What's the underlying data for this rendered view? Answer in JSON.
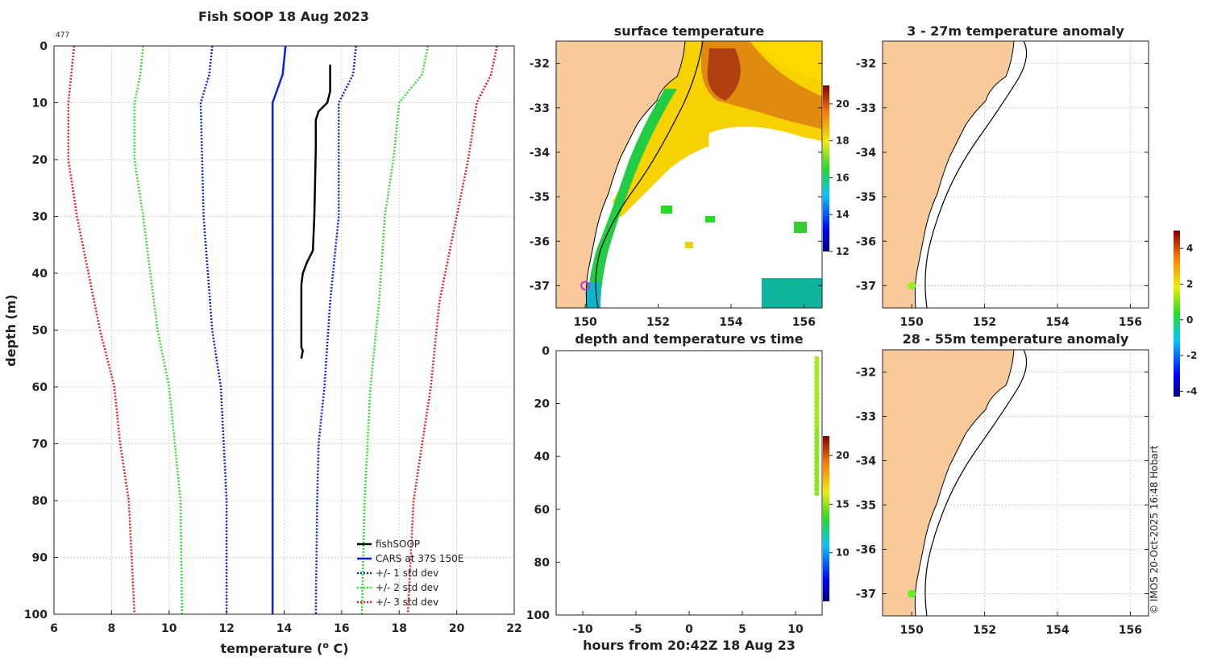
{
  "colors": {
    "fishsoop": "#000000",
    "cars": "#0b1fe0",
    "std1": "#0b1fe0",
    "std2": "#33dd33",
    "std3": "#ee1c1c",
    "land": "#f8c99a",
    "coast": "#000000",
    "circle": "#cc33cc",
    "obs_dot": "#99ee22"
  },
  "icons": {
    "obs_marker": "circle-dot",
    "legend_line": "line-swatch"
  },
  "chart_data": [
    {
      "type": "line",
      "title": "Fish SOOP 18 Aug 2023",
      "annotation": "477",
      "xlabel": "temperature (",
      "xlabel_sup": "o",
      "xlabel_end": " C)",
      "ylabel": "depth (m)",
      "xlim": [
        6,
        22
      ],
      "ylim": [
        0,
        100
      ],
      "y_inverted": true,
      "xticks": [
        "6",
        "8",
        "10",
        "12",
        "14",
        "16",
        "18",
        "20",
        "22"
      ],
      "yticks": [
        "0",
        "10",
        "20",
        "30",
        "40",
        "50",
        "60",
        "70",
        "80",
        "90",
        "100"
      ],
      "grid": true,
      "legend_position": "bottom-right",
      "series": [
        {
          "name": "fishSOOP",
          "style": "solid",
          "color_key": "fishsoop",
          "points": [
            [
              15.6,
              3.3
            ],
            [
              15.6,
              8
            ],
            [
              15.5,
              10
            ],
            [
              15.2,
              11.5
            ],
            [
              15.1,
              13
            ],
            [
              15.1,
              18
            ],
            [
              15.05,
              30
            ],
            [
              15.0,
              36
            ],
            [
              14.8,
              38
            ],
            [
              14.65,
              40
            ],
            [
              14.6,
              42
            ],
            [
              14.6,
              53
            ],
            [
              14.65,
              53.6
            ],
            [
              14.6,
              55
            ]
          ]
        },
        {
          "name": "CARS at 37S 150E",
          "style": "solid",
          "color_key": "cars",
          "points": [
            [
              14.05,
              0
            ],
            [
              13.95,
              5
            ],
            [
              13.6,
              10
            ],
            [
              13.6,
              100
            ]
          ]
        },
        {
          "name": "+/- 1 std dev",
          "style": "dotted",
          "color_key": "std1",
          "points_lower": [
            [
              11.5,
              0
            ],
            [
              11.4,
              5
            ],
            [
              11.1,
              10
            ],
            [
              11.2,
              30
            ],
            [
              11.5,
              50
            ],
            [
              11.8,
              60
            ],
            [
              11.9,
              70
            ],
            [
              12.0,
              80
            ],
            [
              12.0,
              100
            ]
          ],
          "points_upper": [
            [
              16.5,
              0
            ],
            [
              16.4,
              5
            ],
            [
              15.9,
              10
            ],
            [
              15.9,
              30
            ],
            [
              15.6,
              45
            ],
            [
              15.4,
              60
            ],
            [
              15.2,
              70
            ],
            [
              15.15,
              80
            ],
            [
              15.1,
              100
            ]
          ]
        },
        {
          "name": "+/- 2 std dev",
          "style": "dotted",
          "color_key": "std2",
          "points_lower": [
            [
              9.1,
              0
            ],
            [
              9.0,
              5
            ],
            [
              8.8,
              10
            ],
            [
              8.8,
              20
            ],
            [
              9.1,
              30
            ],
            [
              9.6,
              50
            ],
            [
              10.0,
              60
            ],
            [
              10.2,
              70
            ],
            [
              10.4,
              80
            ],
            [
              10.45,
              100
            ]
          ],
          "points_upper": [
            [
              19.0,
              0
            ],
            [
              18.8,
              5
            ],
            [
              18.0,
              10
            ],
            [
              17.8,
              20
            ],
            [
              17.5,
              30
            ],
            [
              17.3,
              45
            ],
            [
              17.0,
              60
            ],
            [
              16.9,
              70
            ],
            [
              16.8,
              80
            ],
            [
              16.7,
              100
            ]
          ]
        },
        {
          "name": "+/- 3 std dev",
          "style": "dotted",
          "color_key": "std3",
          "points_lower": [
            [
              6.7,
              0
            ],
            [
              6.6,
              5
            ],
            [
              6.5,
              10
            ],
            [
              6.5,
              20
            ],
            [
              6.8,
              30
            ],
            [
              7.6,
              50
            ],
            [
              8.1,
              60
            ],
            [
              8.3,
              70
            ],
            [
              8.6,
              80
            ],
            [
              8.8,
              100
            ]
          ],
          "points_upper": [
            [
              21.4,
              0
            ],
            [
              21.2,
              5
            ],
            [
              20.7,
              10
            ],
            [
              20.4,
              20
            ],
            [
              20.0,
              30
            ],
            [
              19.4,
              45
            ],
            [
              19.1,
              60
            ],
            [
              18.8,
              70
            ],
            [
              18.5,
              80
            ],
            [
              18.3,
              100
            ]
          ]
        }
      ]
    },
    {
      "type": "heatmap",
      "title": "surface temperature",
      "xlim": [
        149.2,
        156.5
      ],
      "ylim": [
        -37.5,
        -31.5
      ],
      "xticks": [
        "150",
        "152",
        "154",
        "156"
      ],
      "yticks": [
        "-32",
        "-33",
        "-34",
        "-35",
        "-36",
        "-37"
      ],
      "colorbar_range": [
        12,
        21
      ],
      "colorbar_ticks": [
        "12",
        "14",
        "16",
        "18",
        "20"
      ],
      "marker": {
        "lon": 150.0,
        "lat": -37.0
      }
    },
    {
      "type": "scatter",
      "title": "depth and temperature vs time",
      "xlabel": "hours from 20:42Z 18 Aug 23",
      "ylabel": "",
      "xlim": [
        -12.5,
        12.5
      ],
      "ylim": [
        0,
        100
      ],
      "y_inverted": true,
      "xticks": [
        "-10",
        "-5",
        "0",
        "5",
        "10"
      ],
      "yticks": [
        "0",
        "20",
        "40",
        "60",
        "80",
        "100"
      ],
      "colorbar_range": [
        5,
        22
      ],
      "colorbar_ticks": [
        "10",
        "15",
        "20"
      ],
      "points": {
        "hour": 12.0,
        "depth_from": 3,
        "depth_to": 55,
        "step": 1.5
      }
    },
    {
      "type": "map",
      "title": "3 - 27m temperature anomaly",
      "xlim": [
        149.2,
        156.5
      ],
      "ylim": [
        -37.5,
        -31.5
      ],
      "xticks": [
        "150",
        "152",
        "154",
        "156"
      ],
      "yticks": [
        "-32",
        "-33",
        "-34",
        "-35",
        "-36",
        "-37"
      ],
      "marker": {
        "lon": 150.0,
        "lat": -37.0
      }
    },
    {
      "type": "map",
      "title": "28 - 55m temperature anomaly",
      "xlim": [
        149.2,
        156.5
      ],
      "ylim": [
        -37.5,
        -31.5
      ],
      "xticks": [
        "150",
        "152",
        "154",
        "156"
      ],
      "yticks": [
        "-32",
        "-33",
        "-34",
        "-35",
        "-36",
        "-37"
      ],
      "marker": {
        "lon": 150.0,
        "lat": -37.0
      }
    }
  ],
  "anomaly_colorbar": {
    "range": [
      -4.3,
      5.0
    ],
    "ticks": [
      "4",
      "2",
      "0",
      "-2",
      "-4"
    ],
    "tick_values": [
      4,
      2,
      0,
      -2,
      -4
    ]
  },
  "credit": "© IMOS 20-Oct-2025 16:48 Hobart"
}
